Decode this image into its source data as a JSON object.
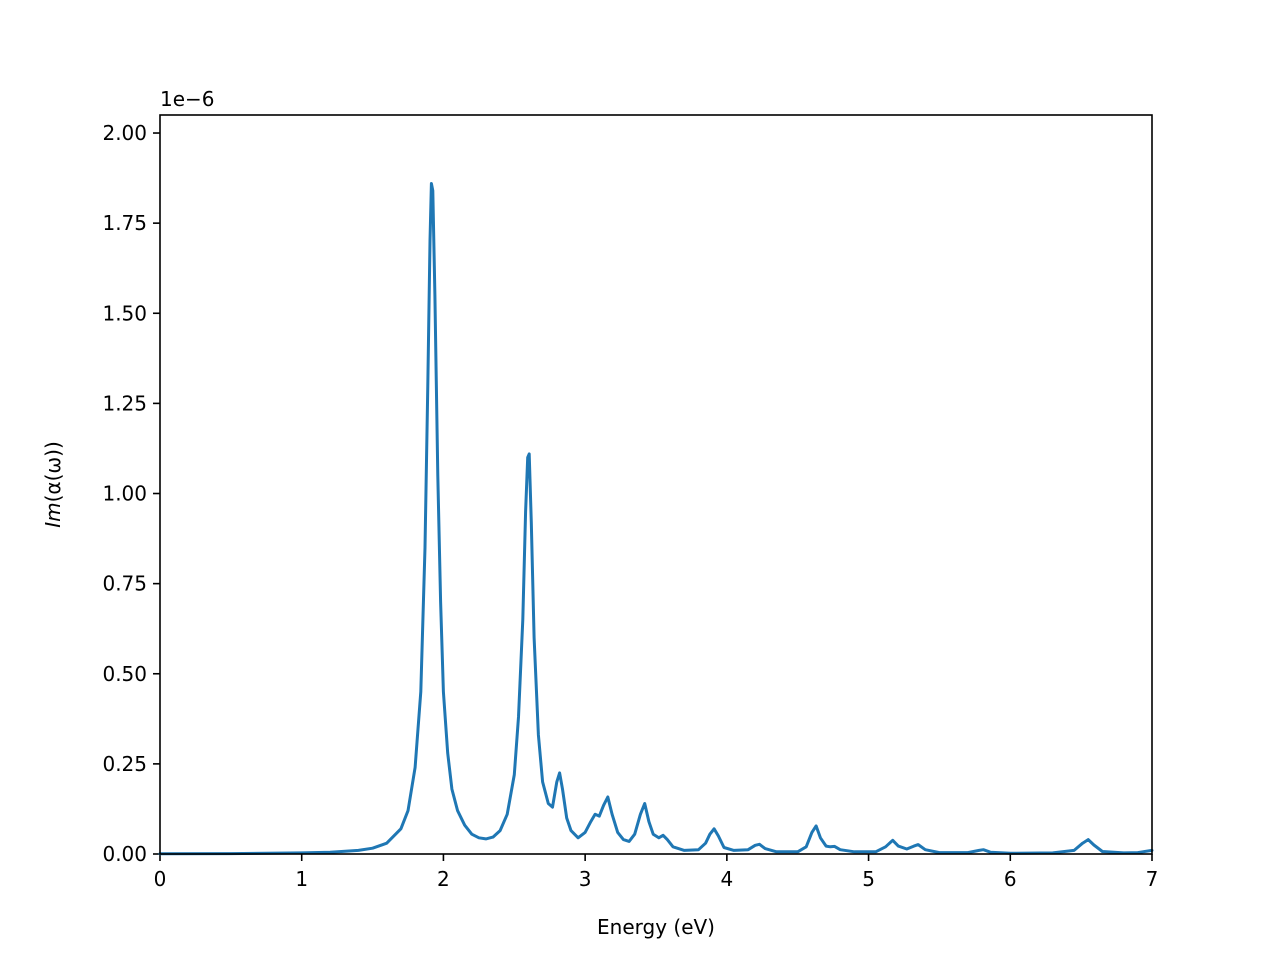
{
  "chart_data": {
    "type": "line",
    "title": "",
    "xlabel": "Energy (eV)",
    "ylabel_italic": "Im",
    "ylabel_rest": "(α(ω))",
    "offset_label": "1e−6",
    "xlim": [
      0,
      7
    ],
    "ylim": [
      0,
      2.05
    ],
    "grid": false,
    "line_color": "#1f77b4",
    "x_ticks": [
      {
        "value": 0,
        "label": "0"
      },
      {
        "value": 1,
        "label": "1"
      },
      {
        "value": 2,
        "label": "2"
      },
      {
        "value": 3,
        "label": "3"
      },
      {
        "value": 4,
        "label": "4"
      },
      {
        "value": 5,
        "label": "5"
      },
      {
        "value": 6,
        "label": "6"
      },
      {
        "value": 7,
        "label": "7"
      }
    ],
    "y_ticks": [
      {
        "value": 0,
        "label": "0.00"
      },
      {
        "value": 0.25,
        "label": "0.25"
      },
      {
        "value": 0.5,
        "label": "0.50"
      },
      {
        "value": 0.75,
        "label": "0.75"
      },
      {
        "value": 1.0,
        "label": "1.00"
      },
      {
        "value": 1.25,
        "label": "1.25"
      },
      {
        "value": 1.5,
        "label": "1.50"
      },
      {
        "value": 1.75,
        "label": "1.75"
      },
      {
        "value": 2.0,
        "label": "2.00"
      }
    ],
    "series": [
      {
        "points": [
          [
            0.0,
            0.0005
          ],
          [
            0.5,
            0.001
          ],
          [
            1.0,
            0.003
          ],
          [
            1.2,
            0.005
          ],
          [
            1.4,
            0.01
          ],
          [
            1.5,
            0.016
          ],
          [
            1.6,
            0.03
          ],
          [
            1.7,
            0.07
          ],
          [
            1.75,
            0.12
          ],
          [
            1.8,
            0.24
          ],
          [
            1.84,
            0.45
          ],
          [
            1.87,
            0.85
          ],
          [
            1.89,
            1.3
          ],
          [
            1.905,
            1.7
          ],
          [
            1.915,
            1.86
          ],
          [
            1.925,
            1.84
          ],
          [
            1.94,
            1.55
          ],
          [
            1.96,
            1.05
          ],
          [
            1.98,
            0.7
          ],
          [
            2.0,
            0.45
          ],
          [
            2.03,
            0.28
          ],
          [
            2.06,
            0.18
          ],
          [
            2.1,
            0.12
          ],
          [
            2.15,
            0.08
          ],
          [
            2.2,
            0.055
          ],
          [
            2.25,
            0.045
          ],
          [
            2.3,
            0.042
          ],
          [
            2.35,
            0.047
          ],
          [
            2.4,
            0.065
          ],
          [
            2.45,
            0.11
          ],
          [
            2.5,
            0.22
          ],
          [
            2.53,
            0.38
          ],
          [
            2.56,
            0.65
          ],
          [
            2.58,
            0.95
          ],
          [
            2.595,
            1.1
          ],
          [
            2.605,
            1.11
          ],
          [
            2.62,
            0.92
          ],
          [
            2.64,
            0.6
          ],
          [
            2.67,
            0.33
          ],
          [
            2.7,
            0.2
          ],
          [
            2.74,
            0.14
          ],
          [
            2.77,
            0.13
          ],
          [
            2.8,
            0.2
          ],
          [
            2.82,
            0.225
          ],
          [
            2.84,
            0.18
          ],
          [
            2.87,
            0.1
          ],
          [
            2.9,
            0.065
          ],
          [
            2.95,
            0.045
          ],
          [
            3.0,
            0.06
          ],
          [
            3.04,
            0.09
          ],
          [
            3.07,
            0.11
          ],
          [
            3.1,
            0.105
          ],
          [
            3.13,
            0.135
          ],
          [
            3.16,
            0.158
          ],
          [
            3.19,
            0.11
          ],
          [
            3.23,
            0.06
          ],
          [
            3.27,
            0.04
          ],
          [
            3.31,
            0.035
          ],
          [
            3.35,
            0.055
          ],
          [
            3.39,
            0.11
          ],
          [
            3.42,
            0.14
          ],
          [
            3.45,
            0.09
          ],
          [
            3.48,
            0.055
          ],
          [
            3.52,
            0.045
          ],
          [
            3.55,
            0.052
          ],
          [
            3.58,
            0.04
          ],
          [
            3.62,
            0.02
          ],
          [
            3.7,
            0.01
          ],
          [
            3.8,
            0.012
          ],
          [
            3.85,
            0.03
          ],
          [
            3.88,
            0.055
          ],
          [
            3.91,
            0.07
          ],
          [
            3.94,
            0.05
          ],
          [
            3.98,
            0.018
          ],
          [
            4.05,
            0.01
          ],
          [
            4.15,
            0.012
          ],
          [
            4.2,
            0.024
          ],
          [
            4.23,
            0.027
          ],
          [
            4.27,
            0.015
          ],
          [
            4.35,
            0.006
          ],
          [
            4.5,
            0.006
          ],
          [
            4.56,
            0.02
          ],
          [
            4.6,
            0.06
          ],
          [
            4.63,
            0.078
          ],
          [
            4.66,
            0.045
          ],
          [
            4.7,
            0.022
          ],
          [
            4.73,
            0.02
          ],
          [
            4.76,
            0.021
          ],
          [
            4.8,
            0.012
          ],
          [
            4.9,
            0.006
          ],
          [
            5.05,
            0.006
          ],
          [
            5.12,
            0.02
          ],
          [
            5.17,
            0.038
          ],
          [
            5.21,
            0.022
          ],
          [
            5.27,
            0.014
          ],
          [
            5.32,
            0.022
          ],
          [
            5.35,
            0.026
          ],
          [
            5.4,
            0.012
          ],
          [
            5.5,
            0.004
          ],
          [
            5.7,
            0.004
          ],
          [
            5.78,
            0.01
          ],
          [
            5.81,
            0.012
          ],
          [
            5.86,
            0.005
          ],
          [
            6.0,
            0.002
          ],
          [
            6.3,
            0.003
          ],
          [
            6.45,
            0.01
          ],
          [
            6.51,
            0.03
          ],
          [
            6.55,
            0.04
          ],
          [
            6.59,
            0.025
          ],
          [
            6.65,
            0.007
          ],
          [
            6.8,
            0.003
          ],
          [
            6.9,
            0.004
          ],
          [
            7.0,
            0.01
          ]
        ]
      }
    ]
  }
}
